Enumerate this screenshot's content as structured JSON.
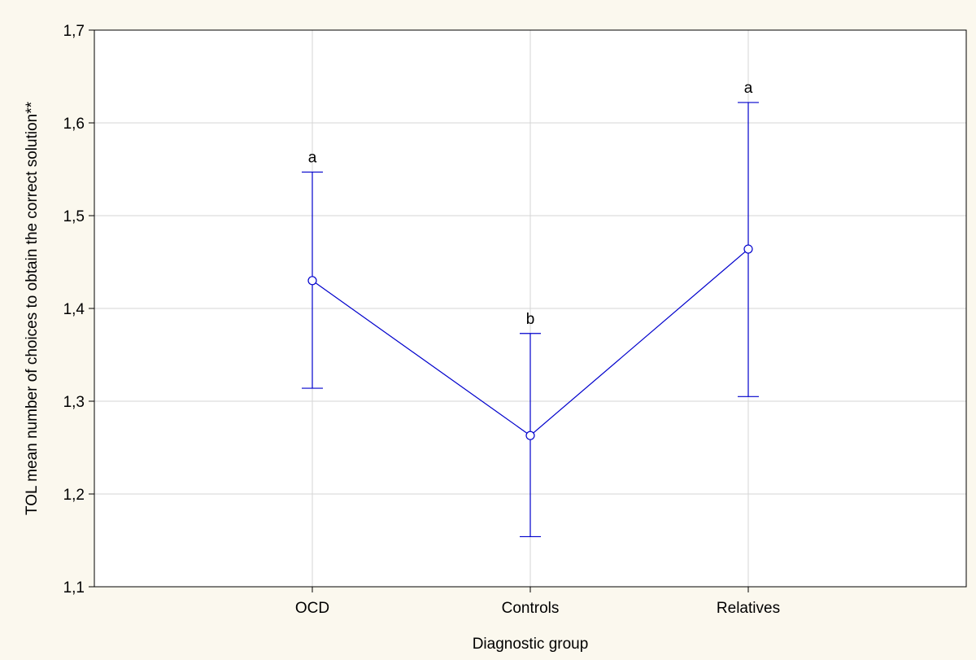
{
  "chart_data": {
    "type": "line",
    "title": "",
    "xlabel": "Diagnostic group",
    "ylabel": "TOL mean number of choices to obtain the correct solution**",
    "categories": [
      "OCD",
      "Controls",
      "Relatives"
    ],
    "series": [
      {
        "values": [
          1.43,
          1.263,
          1.464
        ],
        "lower": [
          1.314,
          1.154,
          1.305
        ],
        "upper": [
          1.547,
          1.373,
          1.622
        ],
        "significance": [
          "a",
          "b",
          "a"
        ],
        "color": "#0000cc"
      }
    ],
    "ylim": [
      1.1,
      1.7
    ],
    "yticks": [
      "1,1",
      "1,2",
      "1,3",
      "1,4",
      "1,5",
      "1,6",
      "1,7"
    ],
    "grid": true
  }
}
